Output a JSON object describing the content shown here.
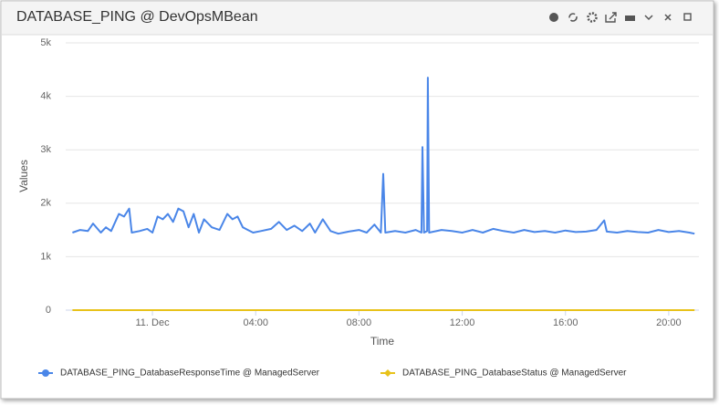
{
  "chart_data": {
    "type": "line",
    "title": "DATABASE_PING @ DevOpsMBean",
    "x_label": "Time",
    "y_label": "Values",
    "xlim": [
      -3.36,
      21.17
    ],
    "ylim": [
      0,
      5000
    ],
    "xticks": [
      {
        "value": 0,
        "label": "11. Dec"
      },
      {
        "value": 4,
        "label": "04:00"
      },
      {
        "value": 8,
        "label": "08:00"
      },
      {
        "value": 12,
        "label": "12:00"
      },
      {
        "value": 16,
        "label": "16:00"
      },
      {
        "value": 20,
        "label": "20:00"
      }
    ],
    "yticks": [
      0,
      {
        "value": 1000,
        "label": "1k"
      },
      {
        "value": 2000,
        "label": "2k"
      },
      {
        "value": 3000,
        "label": "3k"
      },
      {
        "value": 4000,
        "label": "4k"
      },
      {
        "value": 5000,
        "label": "5k"
      }
    ],
    "grid": true,
    "series": [
      {
        "name": "DATABASE_PING_DatabaseResponseTime @ ManagedServer",
        "color": "#4a86e8",
        "x": [
          -3.1,
          -2.8,
          -2.5,
          -2.3,
          -2.0,
          -1.8,
          -1.6,
          -1.3,
          -1.1,
          -0.9,
          -0.8,
          -0.5,
          -0.2,
          0.0,
          0.2,
          0.4,
          0.6,
          0.8,
          1.0,
          1.2,
          1.4,
          1.6,
          1.8,
          2.0,
          2.3,
          2.6,
          2.9,
          3.1,
          3.3,
          3.5,
          3.7,
          3.9,
          4.2,
          4.6,
          4.9,
          5.2,
          5.5,
          5.8,
          6.1,
          6.3,
          6.6,
          6.9,
          7.2,
          7.6,
          8.0,
          8.3,
          8.6,
          8.85,
          8.94,
          9.02,
          9.4,
          9.8,
          10.2,
          10.42,
          10.46,
          10.52,
          10.64,
          10.67,
          10.72,
          11.2,
          11.6,
          12.0,
          12.4,
          12.8,
          13.2,
          13.6,
          14.0,
          14.4,
          14.8,
          15.2,
          15.6,
          16.0,
          16.4,
          16.8,
          17.2,
          17.5,
          17.6,
          18.0,
          18.4,
          18.8,
          19.2,
          19.6,
          20.0,
          20.4,
          20.8,
          21.0
        ],
        "values": [
          1450,
          1500,
          1480,
          1620,
          1450,
          1550,
          1480,
          1800,
          1750,
          1900,
          1450,
          1480,
          1520,
          1450,
          1750,
          1700,
          1800,
          1650,
          1900,
          1850,
          1550,
          1800,
          1450,
          1700,
          1550,
          1500,
          1800,
          1700,
          1750,
          1550,
          1500,
          1450,
          1480,
          1520,
          1650,
          1500,
          1580,
          1480,
          1620,
          1450,
          1700,
          1480,
          1430,
          1470,
          1500,
          1450,
          1600,
          1450,
          2550,
          1450,
          1480,
          1450,
          1500,
          1450,
          3050,
          1450,
          1480,
          4350,
          1450,
          1500,
          1480,
          1450,
          1500,
          1450,
          1520,
          1480,
          1450,
          1500,
          1460,
          1480,
          1450,
          1490,
          1460,
          1470,
          1500,
          1680,
          1470,
          1450,
          1480,
          1460,
          1450,
          1500,
          1460,
          1480,
          1450,
          1430
        ]
      },
      {
        "name": "DATABASE_PING_DatabaseStatus @ ManagedServer",
        "color": "#e8c21a",
        "x": [
          -3.1,
          21.0
        ],
        "values": [
          0,
          0
        ]
      }
    ]
  }
}
